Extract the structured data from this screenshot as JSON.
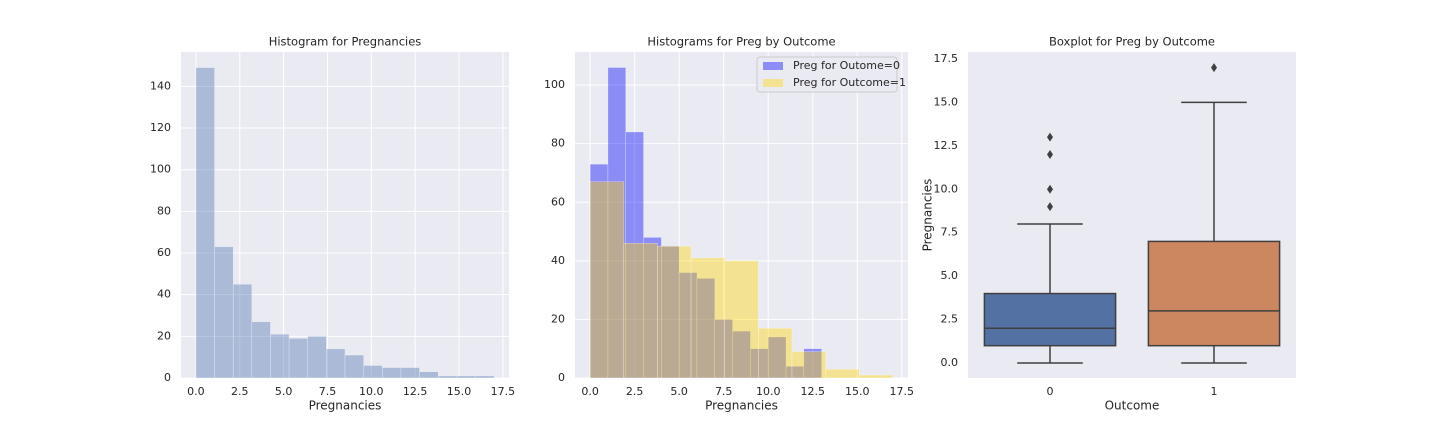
{
  "chart_data": [
    {
      "type": "histogram",
      "title": "Histogram for Pregnancies",
      "xlabel": "Pregnancies",
      "bins": [
        0,
        1.0625,
        2.125,
        3.1875,
        4.25,
        5.3125,
        6.375,
        7.4375,
        8.5,
        9.5625,
        10.625,
        11.6875,
        12.75,
        13.8125,
        14.875,
        15.9375,
        17
      ],
      "values": [
        149,
        63,
        45,
        27,
        21,
        19,
        20,
        14,
        11,
        6,
        5,
        5,
        3,
        1,
        1,
        1
      ],
      "color": "#4c72b0",
      "alpha": 0.4,
      "grid": true,
      "xlim": [
        -0.85,
        17.85
      ],
      "ylim": [
        0,
        156.5
      ],
      "xticks": [
        {
          "value": 0,
          "label": "0.0"
        },
        {
          "value": 2.5,
          "label": "2.5"
        },
        {
          "value": 5,
          "label": "5.0"
        },
        {
          "value": 7.5,
          "label": "7.5"
        },
        {
          "value": 10,
          "label": "10.0"
        },
        {
          "value": 12.5,
          "label": "12.5"
        },
        {
          "value": 15,
          "label": "15.0"
        },
        {
          "value": 17.5,
          "label": "17.5"
        }
      ],
      "yticks": [
        0,
        20,
        40,
        60,
        80,
        100,
        120,
        140
      ]
    },
    {
      "type": "histogram",
      "title": "Histograms for Preg by Outcome",
      "xlabel": "Pregnancies",
      "legend": "upper right",
      "grid": true,
      "series": [
        {
          "name": "Preg for Outome=0",
          "color": "#0000ff",
          "alpha": 0.4,
          "bins": [
            0,
            1,
            2,
            3,
            4,
            5,
            6,
            7,
            8,
            9,
            10,
            11,
            12,
            13
          ],
          "values": [
            73,
            106,
            84,
            48,
            45,
            36,
            34,
            20,
            16,
            10,
            14,
            4,
            10
          ]
        },
        {
          "name": "Preg for Outcome=1",
          "color": "#ffd700",
          "alpha": 0.4,
          "bins": [
            0,
            1.8889,
            3.7778,
            5.6667,
            7.5556,
            9.4444,
            11.3333,
            13.2222,
            15.1111,
            17
          ],
          "values": [
            67,
            46,
            45,
            41,
            40,
            17,
            9,
            3,
            1
          ]
        }
      ],
      "xlim": [
        -0.85,
        17.85
      ],
      "ylim": [
        0,
        111.3
      ],
      "xticks": [
        {
          "value": 0,
          "label": "0.0"
        },
        {
          "value": 2.5,
          "label": "2.5"
        },
        {
          "value": 5,
          "label": "5.0"
        },
        {
          "value": 7.5,
          "label": "7.5"
        },
        {
          "value": 10,
          "label": "10.0"
        },
        {
          "value": 12.5,
          "label": "12.5"
        },
        {
          "value": 15,
          "label": "15.0"
        },
        {
          "value": 17.5,
          "label": "17.5"
        }
      ],
      "yticks": [
        0,
        20,
        40,
        60,
        80,
        100
      ]
    },
    {
      "type": "box",
      "title": "Boxplot for Preg by Outcome",
      "xlabel": "Outcome",
      "ylabel": "Pregnancies",
      "grid": false,
      "categories": [
        "0",
        "1"
      ],
      "boxes": [
        {
          "whislo": 0,
          "q1": 1,
          "median": 2,
          "q3": 4,
          "whishi": 8,
          "fliers": [
            9,
            10,
            12,
            13
          ],
          "color": "#5471a4"
        },
        {
          "whislo": 0,
          "q1": 1,
          "median": 3,
          "q3": 7,
          "whishi": 15,
          "fliers": [
            17
          ],
          "color": "#cc8660"
        }
      ],
      "ylim": [
        -0.86,
        17.9
      ],
      "yticks": [
        {
          "value": 0,
          "label": "0.0"
        },
        {
          "value": 2.5,
          "label": "2.5"
        },
        {
          "value": 5,
          "label": "5.0"
        },
        {
          "value": 7.5,
          "label": "7.5"
        },
        {
          "value": 10,
          "label": "10.0"
        },
        {
          "value": 12.5,
          "label": "12.5"
        },
        {
          "value": 15,
          "label": "15.0"
        },
        {
          "value": 17.5,
          "label": "17.5"
        }
      ]
    }
  ]
}
